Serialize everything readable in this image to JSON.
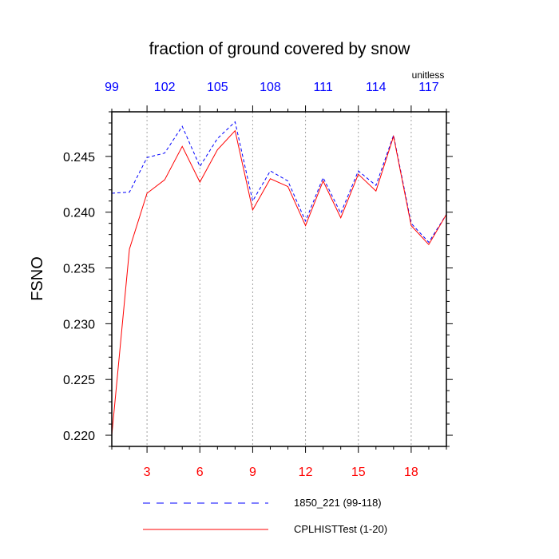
{
  "chart_data": {
    "type": "line",
    "title": "fraction of ground covered by snow",
    "ylabel": "FSNO",
    "units_label": "unitless",
    "xlim": [
      1,
      20
    ],
    "ylim": [
      0.219,
      0.249
    ],
    "bottom_ticks": [
      3,
      6,
      9,
      12,
      15,
      18
    ],
    "top_tick_labels": [
      "99",
      "102",
      "105",
      "108",
      "111",
      "114",
      "117"
    ],
    "y_ticks": [
      {
        "value": 0.22,
        "label": "0.220"
      },
      {
        "value": 0.225,
        "label": "0.225"
      },
      {
        "value": 0.23,
        "label": "0.230"
      },
      {
        "value": 0.235,
        "label": "0.235"
      },
      {
        "value": 0.24,
        "label": "0.240"
      },
      {
        "value": 0.245,
        "label": "0.245"
      }
    ],
    "y_minor_step": 0.001,
    "vertical_gridlines_at": [
      3,
      6,
      9,
      12,
      15,
      18
    ],
    "bottom_tick_color": "#ff0000",
    "top_tick_color": "#0000ff",
    "x": [
      1,
      2,
      3,
      4,
      5,
      6,
      7,
      8,
      9,
      10,
      11,
      12,
      13,
      14,
      15,
      16,
      17,
      18,
      19,
      20
    ],
    "series": [
      {
        "name": "1850_221 (99-118)",
        "color": "#0000ff",
        "dash": "dashed",
        "values": [
          0.2417,
          0.2418,
          0.2449,
          0.2453,
          0.2477,
          0.2441,
          0.2466,
          0.2481,
          0.241,
          0.2437,
          0.2428,
          0.2392,
          0.2431,
          0.2399,
          0.2437,
          0.2424,
          0.2469,
          0.239,
          0.2373,
          0.2398
        ]
      },
      {
        "name": "CPLHISTTest (1-20)",
        "color": "#ff0000",
        "dash": "solid",
        "values": [
          0.22,
          0.2367,
          0.2417,
          0.2429,
          0.2459,
          0.2427,
          0.2456,
          0.2473,
          0.2402,
          0.243,
          0.2423,
          0.2388,
          0.2428,
          0.2395,
          0.2434,
          0.2419,
          0.2468,
          0.2388,
          0.2371,
          0.2398
        ]
      }
    ]
  }
}
